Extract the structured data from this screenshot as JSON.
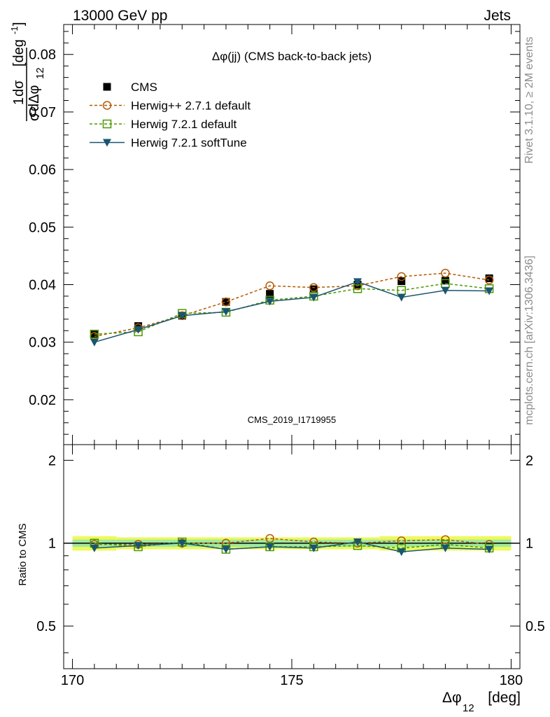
{
  "header": {
    "left": "13000 GeV pp",
    "right": "Jets"
  },
  "side_labels": {
    "top": "Rivet 3.1.10, ≥ 2M events",
    "bottom": "mcplots.cern.ch [arXiv:1306.3436]"
  },
  "chart_data": {
    "type": "line",
    "title": "Δφ(jj) (CMS back-to-back jets)",
    "analysis_id": "CMS_2019_I1719955",
    "xlabel": "Δφ₁₂ [deg]",
    "xlabel_main": "Δφ",
    "xlabel_sub": "12",
    "xlabel_unit": "[deg]",
    "ylabel": "1/σ dσ/dΔφ₁₂ [deg⁻¹]",
    "ylabel_parts": {
      "one": "1",
      "dsigma": "dσ",
      "sigma": "σ",
      "ddphi": "dΔφ",
      "sub": "12",
      "unit": "[deg",
      "exp": "-1",
      "close": "]"
    },
    "ratio_ylabel": "Ratio to CMS",
    "xlim": [
      169.8,
      180.2
    ],
    "ylim": [
      0.0122,
      0.0852
    ],
    "ratio_ylim": [
      0.35,
      2.28
    ],
    "x_ticks": [
      "170",
      "175",
      "180"
    ],
    "y_ticks": [
      "0.02",
      "0.03",
      "0.04",
      "0.05",
      "0.06",
      "0.07",
      "0.08"
    ],
    "ratio_ticks": [
      "0.5",
      "1",
      "2"
    ],
    "grid": false,
    "legend_position": "top-left",
    "x": [
      170.5,
      171.5,
      172.5,
      173.5,
      174.5,
      175.5,
      176.5,
      177.5,
      178.5,
      179.5
    ],
    "series": [
      {
        "name": "CMS",
        "marker": "square-filled",
        "color": "#000000",
        "values": [
          0.0313,
          0.0328,
          0.0346,
          0.037,
          0.0384,
          0.0392,
          0.04,
          0.0406,
          0.0407,
          0.0411
        ],
        "ratio": [
          1.0,
          1.0,
          1.0,
          1.0,
          1.0,
          1.0,
          1.0,
          1.0,
          1.0,
          1.0
        ]
      },
      {
        "name": "Herwig++ 2.7.1 default",
        "marker": "circle-open",
        "color": "#b35900",
        "dash": true,
        "values": [
          0.031,
          0.0325,
          0.0346,
          0.037,
          0.0398,
          0.0395,
          0.0398,
          0.0414,
          0.042,
          0.0408
        ],
        "ratio": [
          0.99,
          0.99,
          1.0,
          1.0,
          1.04,
          1.01,
          1.0,
          1.02,
          1.03,
          0.99
        ]
      },
      {
        "name": "Herwig 7.2.1 default",
        "marker": "square-open",
        "color": "#4c9900",
        "dash": true,
        "values": [
          0.0314,
          0.0318,
          0.035,
          0.0352,
          0.0373,
          0.038,
          0.0393,
          0.039,
          0.0402,
          0.0393
        ],
        "ratio": [
          1.0,
          0.97,
          1.01,
          0.95,
          0.97,
          0.97,
          0.98,
          0.96,
          0.99,
          0.96
        ]
      },
      {
        "name": "Herwig 7.2.1 softTune",
        "marker": "triangle-down-filled",
        "color": "#1a5570",
        "dash": false,
        "values": [
          0.03,
          0.0322,
          0.0346,
          0.0353,
          0.0371,
          0.0378,
          0.0405,
          0.0378,
          0.039,
          0.0389
        ],
        "ratio": [
          0.96,
          0.98,
          1.0,
          0.95,
          0.97,
          0.96,
          1.01,
          0.93,
          0.96,
          0.95
        ]
      }
    ],
    "band_colors": {
      "outer": "#eef95a",
      "inner": "#9fe8a0"
    },
    "band_outer": [
      0.06,
      0.05,
      0.05,
      0.05,
      0.05,
      0.05,
      0.05,
      0.06,
      0.06,
      0.06
    ],
    "band_inner": [
      0.03,
      0.03,
      0.03,
      0.03,
      0.03,
      0.03,
      0.03,
      0.03,
      0.03,
      0.03
    ]
  }
}
